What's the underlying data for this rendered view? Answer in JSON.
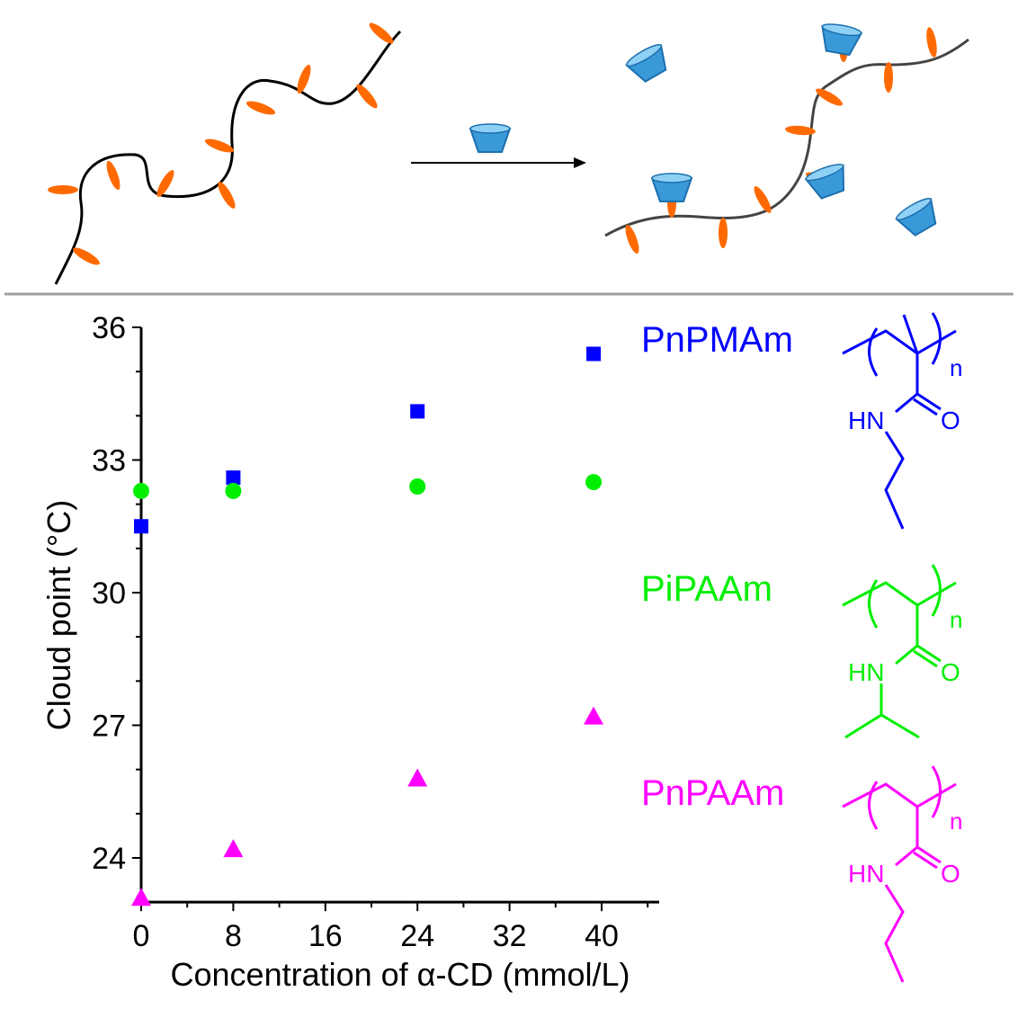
{
  "scheme": {
    "description_arrow": "arrow",
    "colors": {
      "chain": "#000000",
      "side_group": "#ff6a00",
      "cyclodextrin": "#3a9ad9",
      "divider": "#a0a0a0"
    }
  },
  "chart_data": {
    "type": "scatter",
    "title": "",
    "xlabel": "Concentration of α-CD (mmol/L)",
    "ylabel": "Cloud point (°C)",
    "xlim": [
      0,
      45
    ],
    "ylim": [
      23,
      36
    ],
    "xticks": [
      "0",
      "8",
      "16",
      "24",
      "32",
      "40"
    ],
    "xtick_values": [
      0,
      8,
      16,
      24,
      32,
      40
    ],
    "yticks": [
      "24",
      "27",
      "30",
      "33",
      "36"
    ],
    "ytick_values": [
      24,
      27,
      30,
      33,
      36
    ],
    "grid": false,
    "legend_placement": "right",
    "series": [
      {
        "name": "PnPMAm",
        "color": "#0000ff",
        "marker": "square",
        "x": [
          0,
          8,
          24,
          39.3
        ],
        "y": [
          31.5,
          32.6,
          34.1,
          35.4
        ]
      },
      {
        "name": "PiPAAm",
        "color": "#00ee00",
        "marker": "circle",
        "x": [
          0,
          8,
          24,
          39.3
        ],
        "y": [
          32.3,
          32.3,
          32.4,
          32.5
        ]
      },
      {
        "name": "PnPAAm",
        "color": "#ff00ff",
        "marker": "triangle",
        "x": [
          0,
          8,
          24,
          39.3
        ],
        "y": [
          23.1,
          24.2,
          25.8,
          27.2
        ]
      }
    ],
    "structure_labels": {
      "hn": "HN",
      "o": "O",
      "n": "n"
    }
  }
}
